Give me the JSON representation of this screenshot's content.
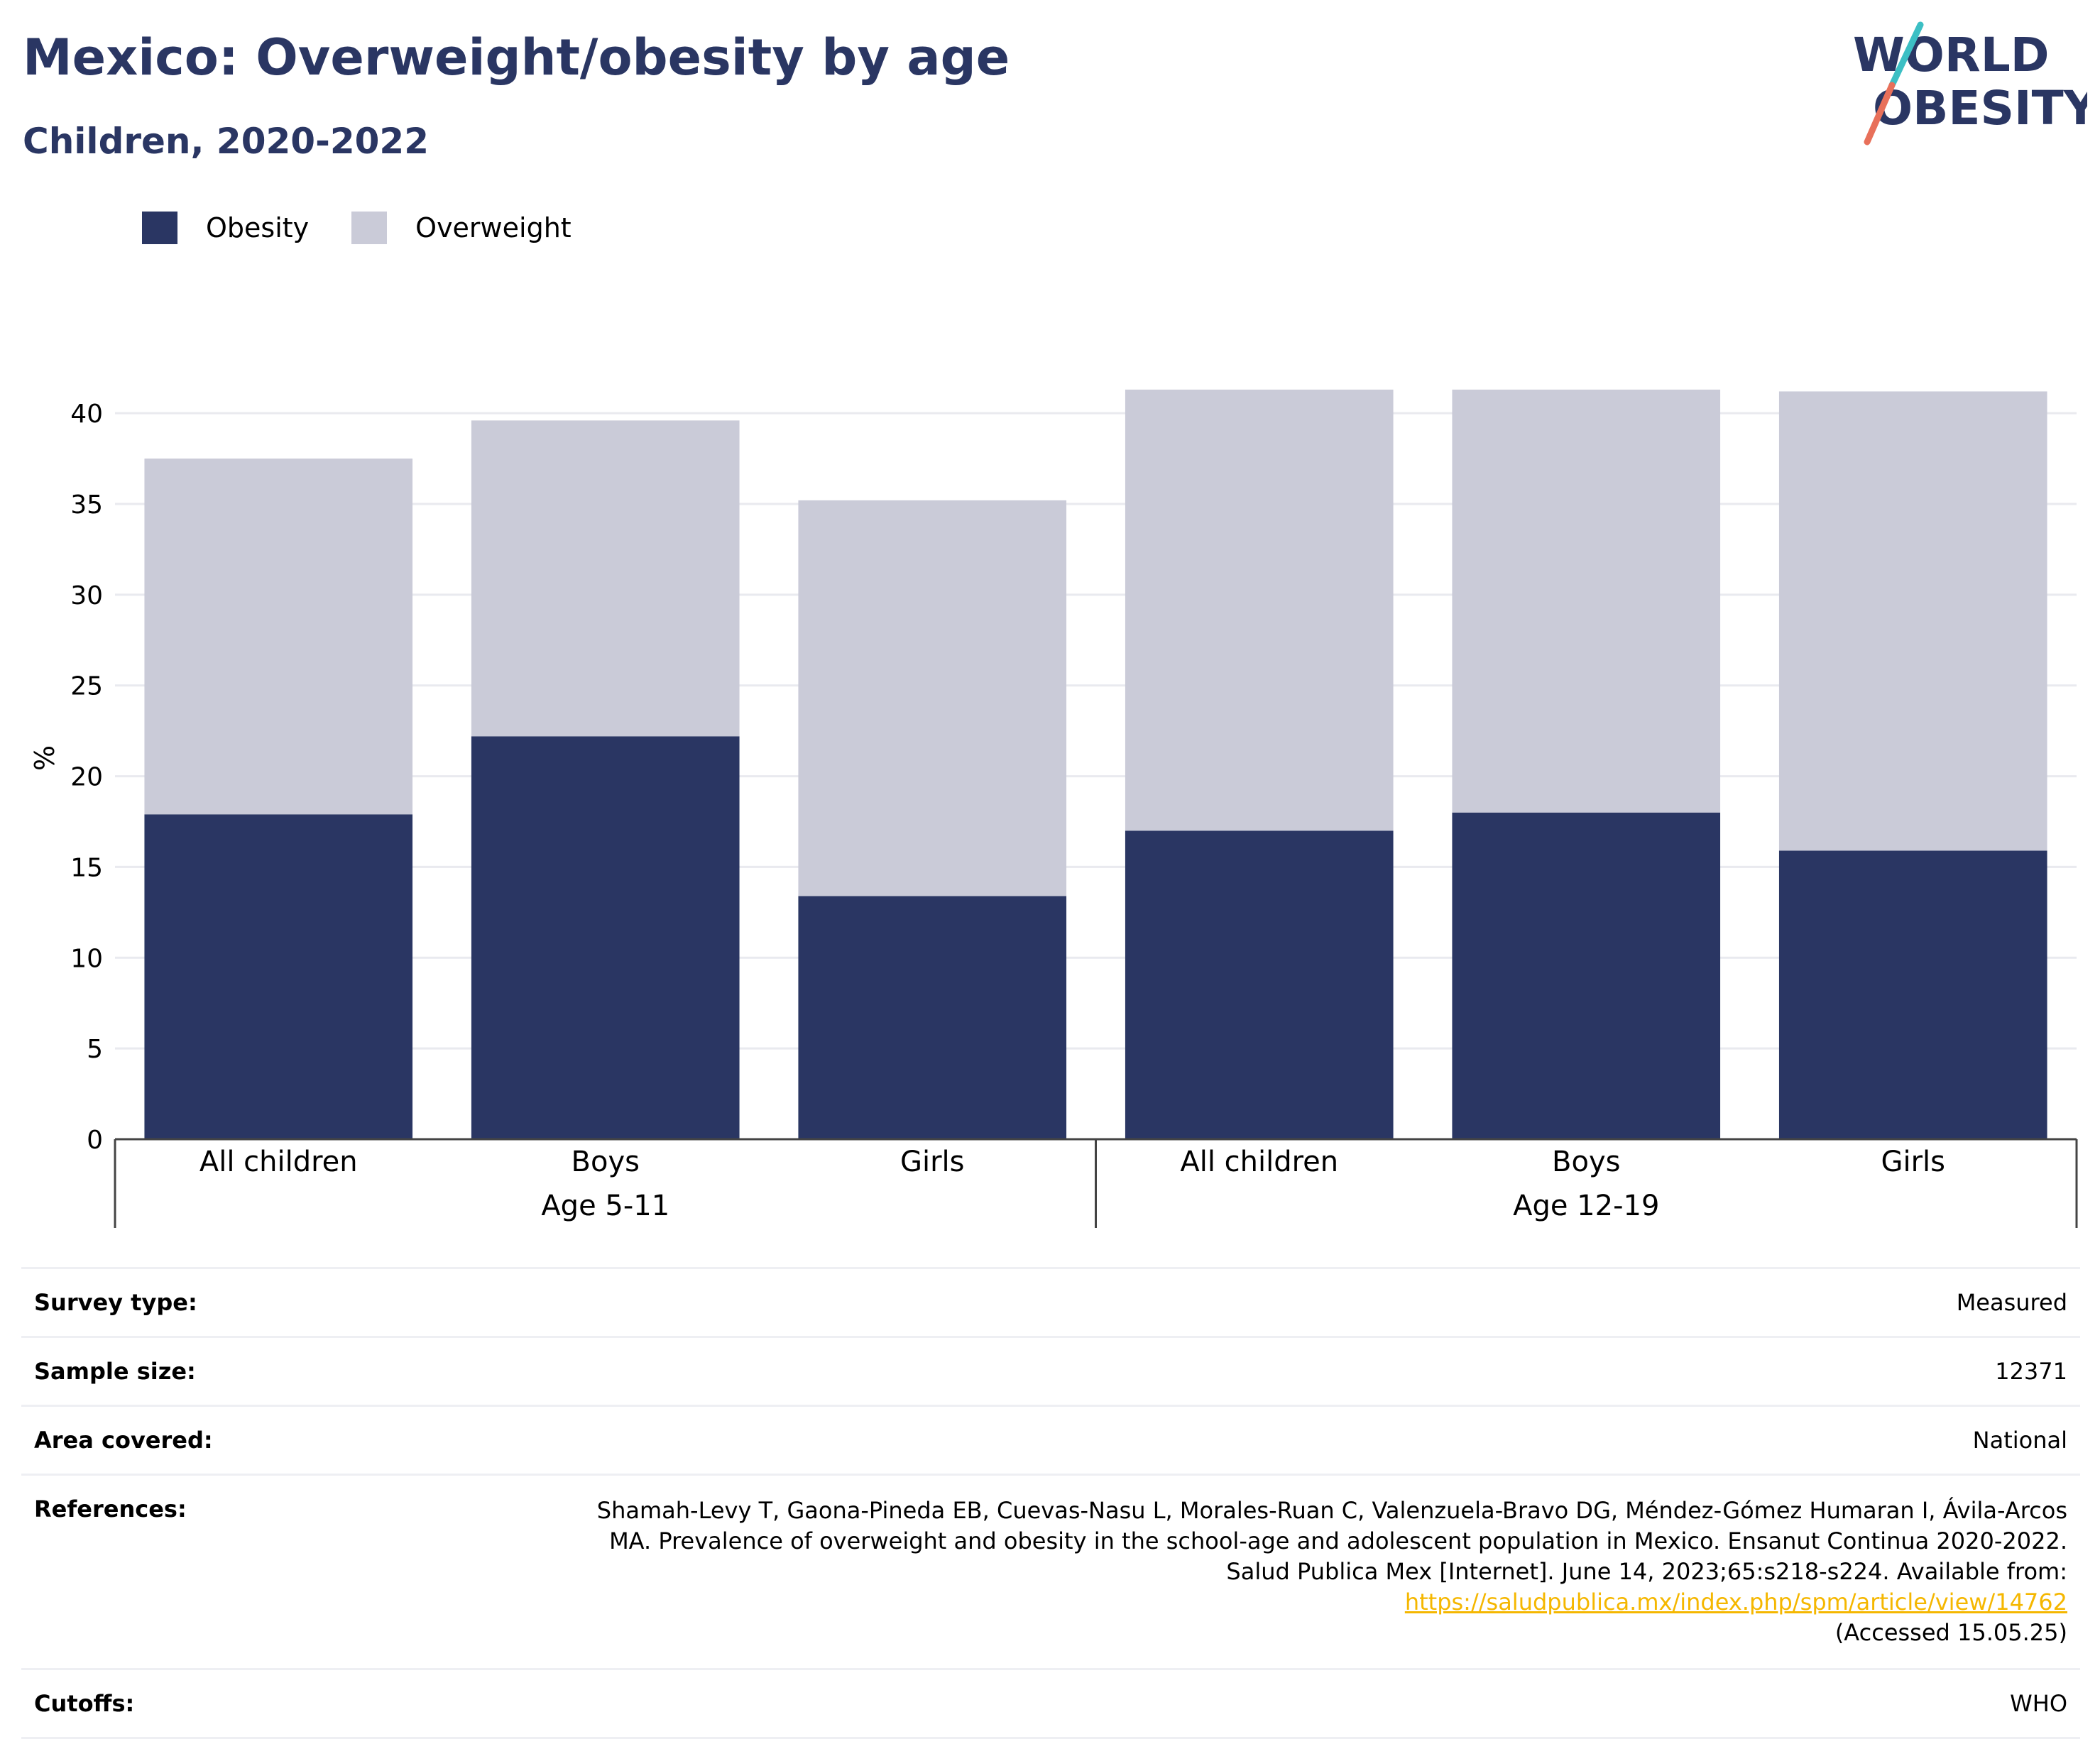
{
  "title": "Mexico: Overweight/obesity by age",
  "subtitle": "Children, 2020-2022",
  "logo": {
    "line1": "WORLD",
    "line2": "OBESITY"
  },
  "colors": {
    "obesity": "#2a3663",
    "overweight": "#cacbd8",
    "title": "#2a3663",
    "link": "#f5b700"
  },
  "chart_data": {
    "type": "bar",
    "stacked": true,
    "ylabel": "%",
    "ylim": [
      0,
      42
    ],
    "yticks": [
      0,
      5,
      10,
      15,
      20,
      25,
      30,
      35,
      40
    ],
    "grid": true,
    "legend_position": "top-left",
    "groups": [
      {
        "label": "Age 5-11",
        "categories": [
          "All children",
          "Boys",
          "Girls"
        ]
      },
      {
        "label": "Age 12-19",
        "categories": [
          "All children",
          "Boys",
          "Girls"
        ]
      }
    ],
    "categories": [
      "All children",
      "Boys",
      "Girls",
      "All children",
      "Boys",
      "Girls"
    ],
    "series": [
      {
        "name": "Obesity",
        "values": [
          17.9,
          22.2,
          13.4,
          17.0,
          18.0,
          15.9
        ]
      },
      {
        "name": "Overweight",
        "values": [
          19.6,
          17.4,
          21.8,
          24.3,
          23.3,
          25.3
        ]
      }
    ]
  },
  "meta": {
    "survey_type_label": "Survey type:",
    "survey_type": "Measured",
    "sample_size_label": "Sample size:",
    "sample_size": "12371",
    "area_label": "Area covered:",
    "area": "National",
    "references_label": "References:",
    "references_text": "Shamah-Levy T, Gaona-Pineda EB, Cuevas-Nasu L, Morales-Ruan C, Valenzuela-Bravo DG, Méndez-Gómez Humaran I, Ávila-Arcos MA. Prevalence of overweight and obesity in the school-age and adolescent population in Mexico. Ensanut Continua 2020-2022. Salud Publica Mex [Internet]. June 14, 2023;65:s218-s224. Available from: ",
    "references_link": "https://saludpublica.mx/index.php/spm/article/view/14762",
    "references_accessed": "(Accessed 15.05.25)",
    "cutoffs_label": "Cutoffs:",
    "cutoffs": "WHO"
  }
}
